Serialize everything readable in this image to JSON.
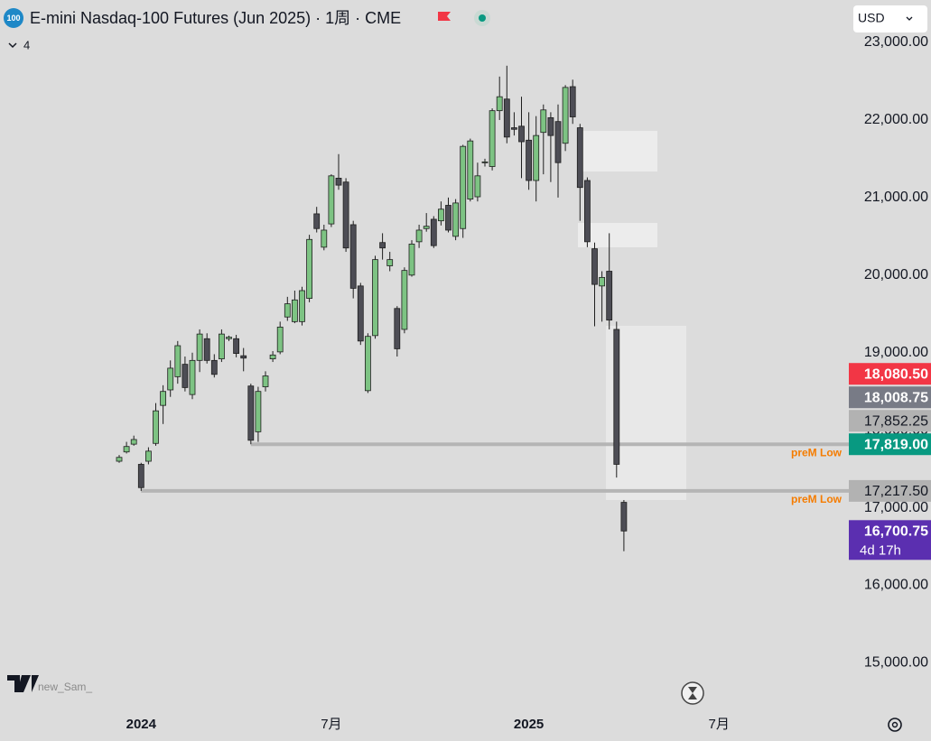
{
  "chart_data": {
    "type": "candlestick",
    "symbol_badge": "100",
    "title": "E-mini Nasdaq-100 Futures (Jun 2025) · 1周 · CME",
    "indicator_count": "4",
    "currency": "USD",
    "watermark": "new_Sam_",
    "up_color": "#7dc383",
    "down_color": "#4d4d55",
    "grid": false,
    "categories": [
      null,
      null,
      null,
      "2024",
      null,
      null,
      null,
      null,
      null,
      null,
      null,
      null,
      null,
      null,
      null,
      null,
      null,
      null,
      null,
      null,
      null,
      null,
      null,
      null,
      null,
      null,
      null,
      null,
      null,
      "7月",
      null,
      null,
      null,
      null,
      null,
      null,
      null,
      null,
      null,
      null,
      null,
      null,
      null,
      null,
      null,
      null,
      null,
      null,
      null,
      null,
      null,
      null,
      null,
      null,
      null,
      null,
      "2025",
      null,
      null,
      null,
      null,
      null,
      null,
      null,
      null,
      null,
      null,
      null,
      null,
      null,
      null,
      null,
      null,
      null,
      null,
      null,
      null,
      null,
      null,
      null,
      null,
      null,
      "7月",
      null
    ],
    "open": [
      17600,
      17720,
      17820,
      17560,
      17600,
      17830,
      18320,
      18520,
      18690,
      18850,
      18460,
      18900,
      19180,
      18900,
      18920,
      19180,
      19180,
      18960,
      18570,
      17980,
      18560,
      18920,
      19010,
      19460,
      19400,
      19400,
      19700,
      20790,
      20360,
      20660,
      21250,
      21200,
      20650,
      19860,
      18510,
      19220,
      20420,
      20120,
      19570,
      19300,
      20000,
      20430,
      20600,
      20720,
      20700,
      20900,
      20500,
      20600,
      20980,
      21010,
      21450,
      21400,
      22120,
      22270,
      21900,
      21920,
      21740,
      21220,
      21840,
      22030,
      21980,
      21700,
      22430,
      21900,
      21220,
      20340,
      19860,
      20050,
      19300,
      17070,
      null,
      null,
      null,
      null,
      null,
      null,
      null,
      null,
      null,
      null,
      null,
      null,
      null,
      null
    ],
    "high": [
      17680,
      17850,
      17930,
      17580,
      17780,
      18350,
      18580,
      18900,
      19150,
      18950,
      19000,
      19300,
      19250,
      18980,
      19300,
      19220,
      19230,
      19060,
      18600,
      18560,
      18760,
      19020,
      19400,
      19720,
      19800,
      19850,
      20520,
      20880,
      20650,
      21300,
      21560,
      21250,
      20700,
      19900,
      19250,
      20250,
      20540,
      20300,
      19600,
      20100,
      20450,
      20650,
      20800,
      20760,
      20950,
      21000,
      20980,
      21680,
      21760,
      21450,
      21500,
      22150,
      22560,
      22700,
      22100,
      22300,
      22100,
      22050,
      22200,
      22100,
      22200,
      22450,
      22520,
      21950,
      21260,
      20420,
      20050,
      20540,
      19400,
      17100,
      null,
      null,
      null,
      null,
      null,
      null,
      null,
      null,
      null,
      null,
      null,
      null,
      null,
      null
    ],
    "low": [
      17580,
      17700,
      17800,
      17217.5,
      17560,
      17800,
      18080,
      18430,
      18600,
      18500,
      18400,
      18750,
      18860,
      18680,
      18880,
      19150,
      18940,
      18760,
      17819,
      17850,
      18500,
      18880,
      18980,
      19410,
      19380,
      19350,
      19650,
      20550,
      20320,
      20620,
      21100,
      20300,
      19700,
      19100,
      18480,
      19180,
      20200,
      20050,
      18950,
      19250,
      19980,
      20350,
      20560,
      20350,
      20640,
      20550,
      20450,
      20480,
      20950,
      20950,
      21400,
      21350,
      22000,
      21700,
      21800,
      21250,
      21100,
      20950,
      21300,
      21200,
      21000,
      21600,
      21950,
      20700,
      20360,
      19340,
      19400,
      19300,
      17390,
      16440,
      null,
      null,
      null,
      null,
      null,
      null,
      null,
      null,
      null,
      null,
      null,
      null,
      null,
      null
    ],
    "close": [
      17650,
      17790,
      17880,
      17260,
      17730,
      18250,
      18500,
      18800,
      19090,
      18550,
      18900,
      19240,
      18900,
      18720,
      19240,
      19200,
      18990,
      18930,
      17870,
      18500,
      18700,
      18970,
      19330,
      19630,
      19680,
      19800,
      20460,
      20600,
      20580,
      21280,
      21160,
      20350,
      19830,
      19150,
      19210,
      20200,
      20350,
      20200,
      19050,
      20060,
      20400,
      20580,
      20630,
      20380,
      20850,
      20580,
      20930,
      21660,
      21730,
      21280,
      21460,
      22120,
      22300,
      21780,
      21880,
      21720,
      21220,
      21800,
      22130,
      21800,
      21450,
      22420,
      22040,
      21130,
      20430,
      19880,
      19970,
      19420,
      17560,
      16700.75,
      null,
      null,
      null,
      null,
      null,
      null,
      null,
      null,
      null,
      null,
      null,
      null,
      null,
      null
    ],
    "ylim": [
      14400,
      23140
    ],
    "yticks": [
      {
        "value": 15000,
        "label": "15,000.00"
      },
      {
        "value": 16000,
        "label": "16,000.00"
      },
      {
        "value": 17000,
        "label": "17,000.00"
      },
      {
        "value": 18000,
        "label": "18,000.00"
      },
      {
        "value": 19000,
        "label": "19,000.00"
      },
      {
        "value": 20000,
        "label": "20,000.00"
      },
      {
        "value": 21000,
        "label": "21,000.00"
      },
      {
        "value": 22000,
        "label": "22,000.00"
      },
      {
        "value": 23000,
        "label": "23,000.00"
      }
    ],
    "levels": [
      {
        "value": 17819,
        "label": "preM Low",
        "from": 18
      },
      {
        "value": 17217.5,
        "label": "preM Low",
        "from": 3
      }
    ],
    "price_labels": [
      {
        "value": 18080.5,
        "label": "18,080.50",
        "color": "#f23645"
      },
      {
        "value": 18008.75,
        "label": "18,008.75",
        "color": "#787b86"
      },
      {
        "value": 17852.25,
        "label": "17,852.25",
        "color": "#b2b2b2"
      },
      {
        "value": 17819,
        "label": "17,819.00",
        "color": "#089981"
      },
      {
        "value": 17217.5,
        "label": "17,217.50",
        "color": "#b2b2b2"
      },
      {
        "value": 16700.75,
        "label": "16,700.75",
        "color": "#5b2fb0",
        "sublabel": "4d 17h"
      }
    ]
  }
}
